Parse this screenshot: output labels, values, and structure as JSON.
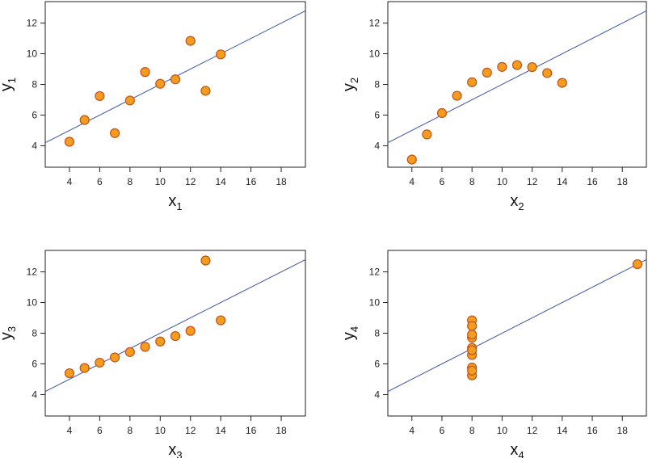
{
  "chart_data": [
    {
      "type": "scatter",
      "title": "",
      "xlabel": "x",
      "xlabel_sub": "1",
      "ylabel": "y",
      "ylabel_sub": "1",
      "xlim": [
        2.4,
        19.6
      ],
      "ylim": [
        2.6,
        13.4
      ],
      "xticks": [
        4,
        6,
        8,
        10,
        12,
        14,
        16,
        18
      ],
      "yticks": [
        4,
        6,
        8,
        10,
        12
      ],
      "x": [
        10,
        8,
        13,
        9,
        11,
        14,
        6,
        4,
        12,
        7,
        5
      ],
      "y": [
        8.04,
        6.95,
        7.58,
        8.81,
        8.33,
        9.96,
        7.24,
        4.26,
        10.84,
        4.82,
        5.68
      ],
      "fit_line": {
        "intercept": 3.0,
        "slope": 0.5
      },
      "colors": {
        "point_fill": "#f39c1f",
        "point_edge": "#c0521b",
        "line": "#3b55a6"
      }
    },
    {
      "type": "scatter",
      "title": "",
      "xlabel": "x",
      "xlabel_sub": "2",
      "ylabel": "y",
      "ylabel_sub": "2",
      "xlim": [
        2.4,
        19.6
      ],
      "ylim": [
        2.6,
        13.4
      ],
      "xticks": [
        4,
        6,
        8,
        10,
        12,
        14,
        16,
        18
      ],
      "yticks": [
        4,
        6,
        8,
        10,
        12
      ],
      "x": [
        10,
        8,
        13,
        9,
        11,
        14,
        6,
        4,
        12,
        7,
        5
      ],
      "y": [
        9.14,
        8.14,
        8.74,
        8.77,
        9.26,
        8.1,
        6.13,
        3.1,
        9.13,
        7.26,
        4.74
      ],
      "fit_line": {
        "intercept": 3.0,
        "slope": 0.5
      },
      "colors": {
        "point_fill": "#f39c1f",
        "point_edge": "#c0521b",
        "line": "#3b55a6"
      }
    },
    {
      "type": "scatter",
      "title": "",
      "xlabel": "x",
      "xlabel_sub": "3",
      "ylabel": "y",
      "ylabel_sub": "3",
      "xlim": [
        2.4,
        19.6
      ],
      "ylim": [
        2.6,
        13.4
      ],
      "xticks": [
        4,
        6,
        8,
        10,
        12,
        14,
        16,
        18
      ],
      "yticks": [
        4,
        6,
        8,
        10,
        12
      ],
      "x": [
        10,
        8,
        13,
        9,
        11,
        14,
        6,
        4,
        12,
        7,
        5
      ],
      "y": [
        7.46,
        6.77,
        12.74,
        7.11,
        7.81,
        8.84,
        6.08,
        5.39,
        8.15,
        6.42,
        5.73
      ],
      "fit_line": {
        "intercept": 3.0,
        "slope": 0.5
      },
      "colors": {
        "point_fill": "#f39c1f",
        "point_edge": "#c0521b",
        "line": "#3b55a6"
      }
    },
    {
      "type": "scatter",
      "title": "",
      "xlabel": "x",
      "xlabel_sub": "4",
      "ylabel": "y",
      "ylabel_sub": "4",
      "xlim": [
        2.4,
        19.6
      ],
      "ylim": [
        2.6,
        13.4
      ],
      "xticks": [
        4,
        6,
        8,
        10,
        12,
        14,
        16,
        18
      ],
      "yticks": [
        4,
        6,
        8,
        10,
        12
      ],
      "x": [
        8,
        8,
        8,
        8,
        8,
        8,
        8,
        19,
        8,
        8,
        8
      ],
      "y": [
        6.58,
        5.76,
        7.71,
        8.84,
        8.47,
        7.04,
        5.25,
        12.5,
        5.56,
        7.91,
        6.89
      ],
      "fit_line": {
        "intercept": 3.0,
        "slope": 0.5
      },
      "colors": {
        "point_fill": "#f39c1f",
        "point_edge": "#c0521b",
        "line": "#3b55a6"
      }
    }
  ]
}
